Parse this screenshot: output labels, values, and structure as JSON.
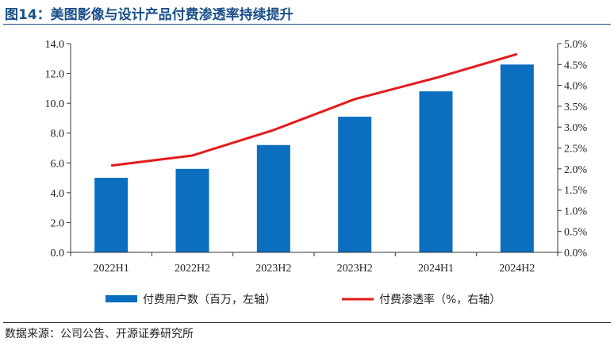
{
  "header": {
    "title": "图14：美图影像与设计产品付费渗透率持续提升"
  },
  "footer": {
    "source": "数据来源：公司公告、开源证券研究所"
  },
  "colors": {
    "bar": "#0b6ebf",
    "line": "#e31b1b",
    "title": "#1a4f8a"
  },
  "chart_data": {
    "type": "bar",
    "categories": [
      "2022H1",
      "2022H2",
      "2023H2",
      "2023H2",
      "2024H1",
      "2024H2"
    ],
    "series": [
      {
        "name": "付费用户数（百万，左轴）",
        "kind": "bar",
        "axis": "left",
        "values": [
          5.0,
          5.6,
          7.2,
          9.1,
          10.8,
          12.6
        ]
      },
      {
        "name": "付费渗透率（%，右轴）",
        "kind": "line",
        "axis": "right",
        "values": [
          2.08,
          2.32,
          2.93,
          3.67,
          4.18,
          4.75
        ]
      }
    ],
    "y_left": {
      "min": 0,
      "max": 14,
      "step": 2,
      "ticks": [
        "0.0",
        "2.0",
        "4.0",
        "6.0",
        "8.0",
        "10.0",
        "12.0",
        "14.0"
      ]
    },
    "y_right": {
      "min": 0,
      "max": 5,
      "step": 0.5,
      "ticks": [
        "0.0%",
        "0.5%",
        "1.0%",
        "1.5%",
        "2.0%",
        "2.5%",
        "3.0%",
        "3.5%",
        "4.0%",
        "4.5%",
        "5.0%"
      ]
    },
    "legend_position": "bottom"
  }
}
